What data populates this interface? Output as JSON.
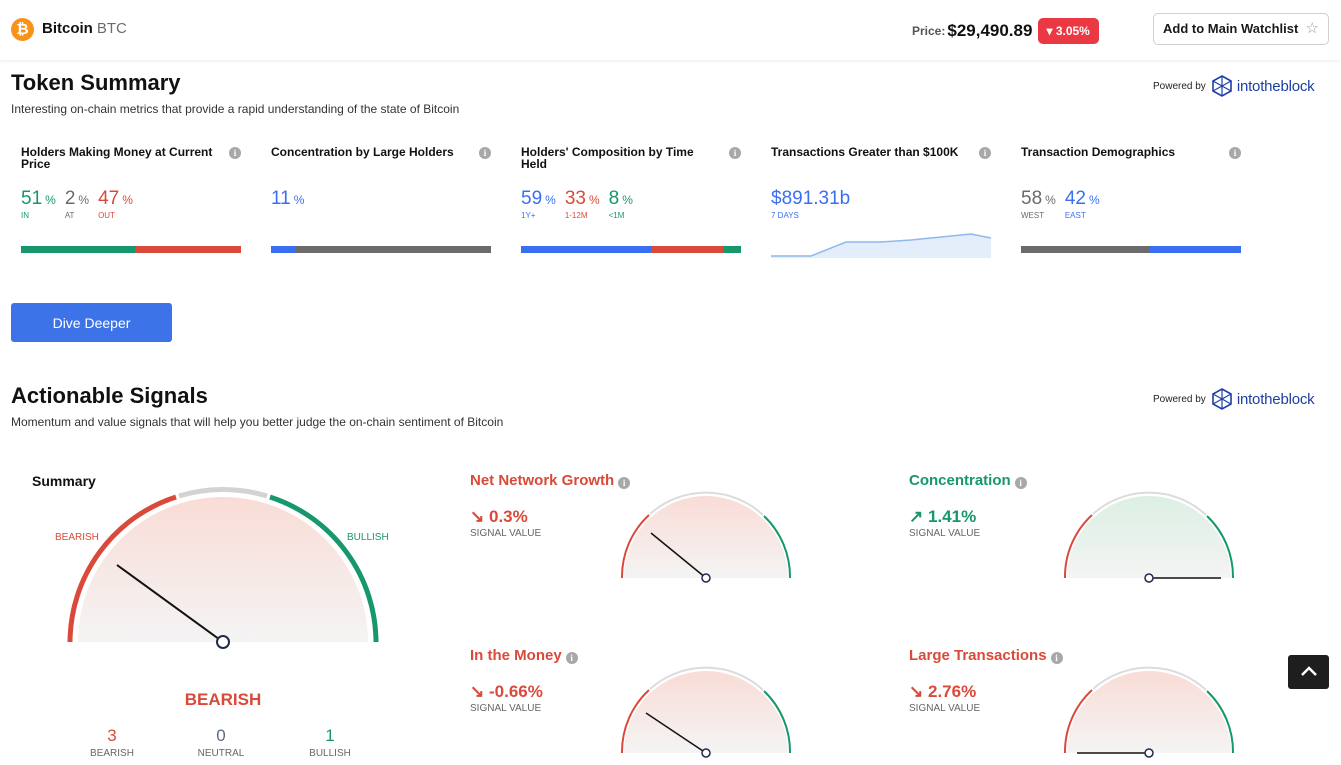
{
  "header": {
    "coin_name": "Bitcoin",
    "coin_symbol": "BTC",
    "price_label": "Price:",
    "price_value": "$29,490.89",
    "change": "3.05%",
    "change_direction": "down",
    "watchlist_label": "Add to Main Watchlist"
  },
  "token_summary": {
    "title": "Token Summary",
    "subtitle": "Interesting on-chain metrics that provide a rapid understanding of the state of Bitcoin",
    "powered_by": "Powered by",
    "provider": "intotheblock",
    "metrics": [
      {
        "title": "Holders Making Money at Current Price",
        "values": [
          {
            "num": "51",
            "pct": "%",
            "label": "IN",
            "color": "#16976c"
          },
          {
            "num": "2",
            "pct": "%",
            "label": "AT",
            "color": "#6b6b6b"
          },
          {
            "num": "47",
            "pct": "%",
            "label": "OUT",
            "color": "#d94a3a"
          }
        ]
      },
      {
        "title": "Concentration by Large Holders",
        "values": [
          {
            "num": "11",
            "pct": "%",
            "label": "",
            "color": "#3b6ff1"
          }
        ]
      },
      {
        "title": "Holders' Composition by Time Held",
        "values": [
          {
            "num": "59",
            "pct": "%",
            "label": "1Y+",
            "color": "#3b6ff1"
          },
          {
            "num": "33",
            "pct": "%",
            "label": "1-12M",
            "color": "#d94a3a"
          },
          {
            "num": "8",
            "pct": "%",
            "label": "<1M",
            "color": "#16976c"
          }
        ]
      },
      {
        "title": "Transactions Greater than $100K",
        "values": [
          {
            "num": "$891.31b",
            "pct": "",
            "label": "7 DAYS",
            "color": "#3b6ff1"
          }
        ]
      },
      {
        "title": "Transaction Demographics",
        "values": [
          {
            "num": "58",
            "pct": "%",
            "label": "WEST",
            "color": "#6b6b6b"
          },
          {
            "num": "42",
            "pct": "%",
            "label": "EAST",
            "color": "#3b6ff1"
          }
        ]
      }
    ],
    "dive_deeper": "Dive Deeper"
  },
  "signals": {
    "title": "Actionable Signals",
    "subtitle": "Momentum and value signals that will help you better judge the on-chain sentiment of Bitcoin",
    "powered_by": "Powered by",
    "provider": "intotheblock",
    "summary": {
      "title": "Summary",
      "bearish_label": "BEARISH",
      "bullish_label": "BULLISH",
      "verdict": "BEARISH",
      "counts": [
        {
          "n": "3",
          "label": "BEARISH",
          "color": "#d94a3a"
        },
        {
          "n": "0",
          "label": "NEUTRAL",
          "color": "#5a6b80"
        },
        {
          "n": "1",
          "label": "BULLISH",
          "color": "#16976c"
        }
      ]
    },
    "items": [
      {
        "title": "Net Network Growth",
        "arrow": "↘",
        "value": "0.3%",
        "sub": "SIGNAL VALUE",
        "color": "#d94a3a"
      },
      {
        "title": "Concentration",
        "arrow": "↗",
        "value": "1.41%",
        "sub": "SIGNAL VALUE",
        "color": "#16976c"
      },
      {
        "title": "In the Money",
        "arrow": "↘",
        "value": "-0.66%",
        "sub": "SIGNAL VALUE",
        "color": "#d94a3a"
      },
      {
        "title": "Large Transactions",
        "arrow": "↘",
        "value": "2.76%",
        "sub": "SIGNAL VALUE",
        "color": "#d94a3a"
      }
    ]
  }
}
